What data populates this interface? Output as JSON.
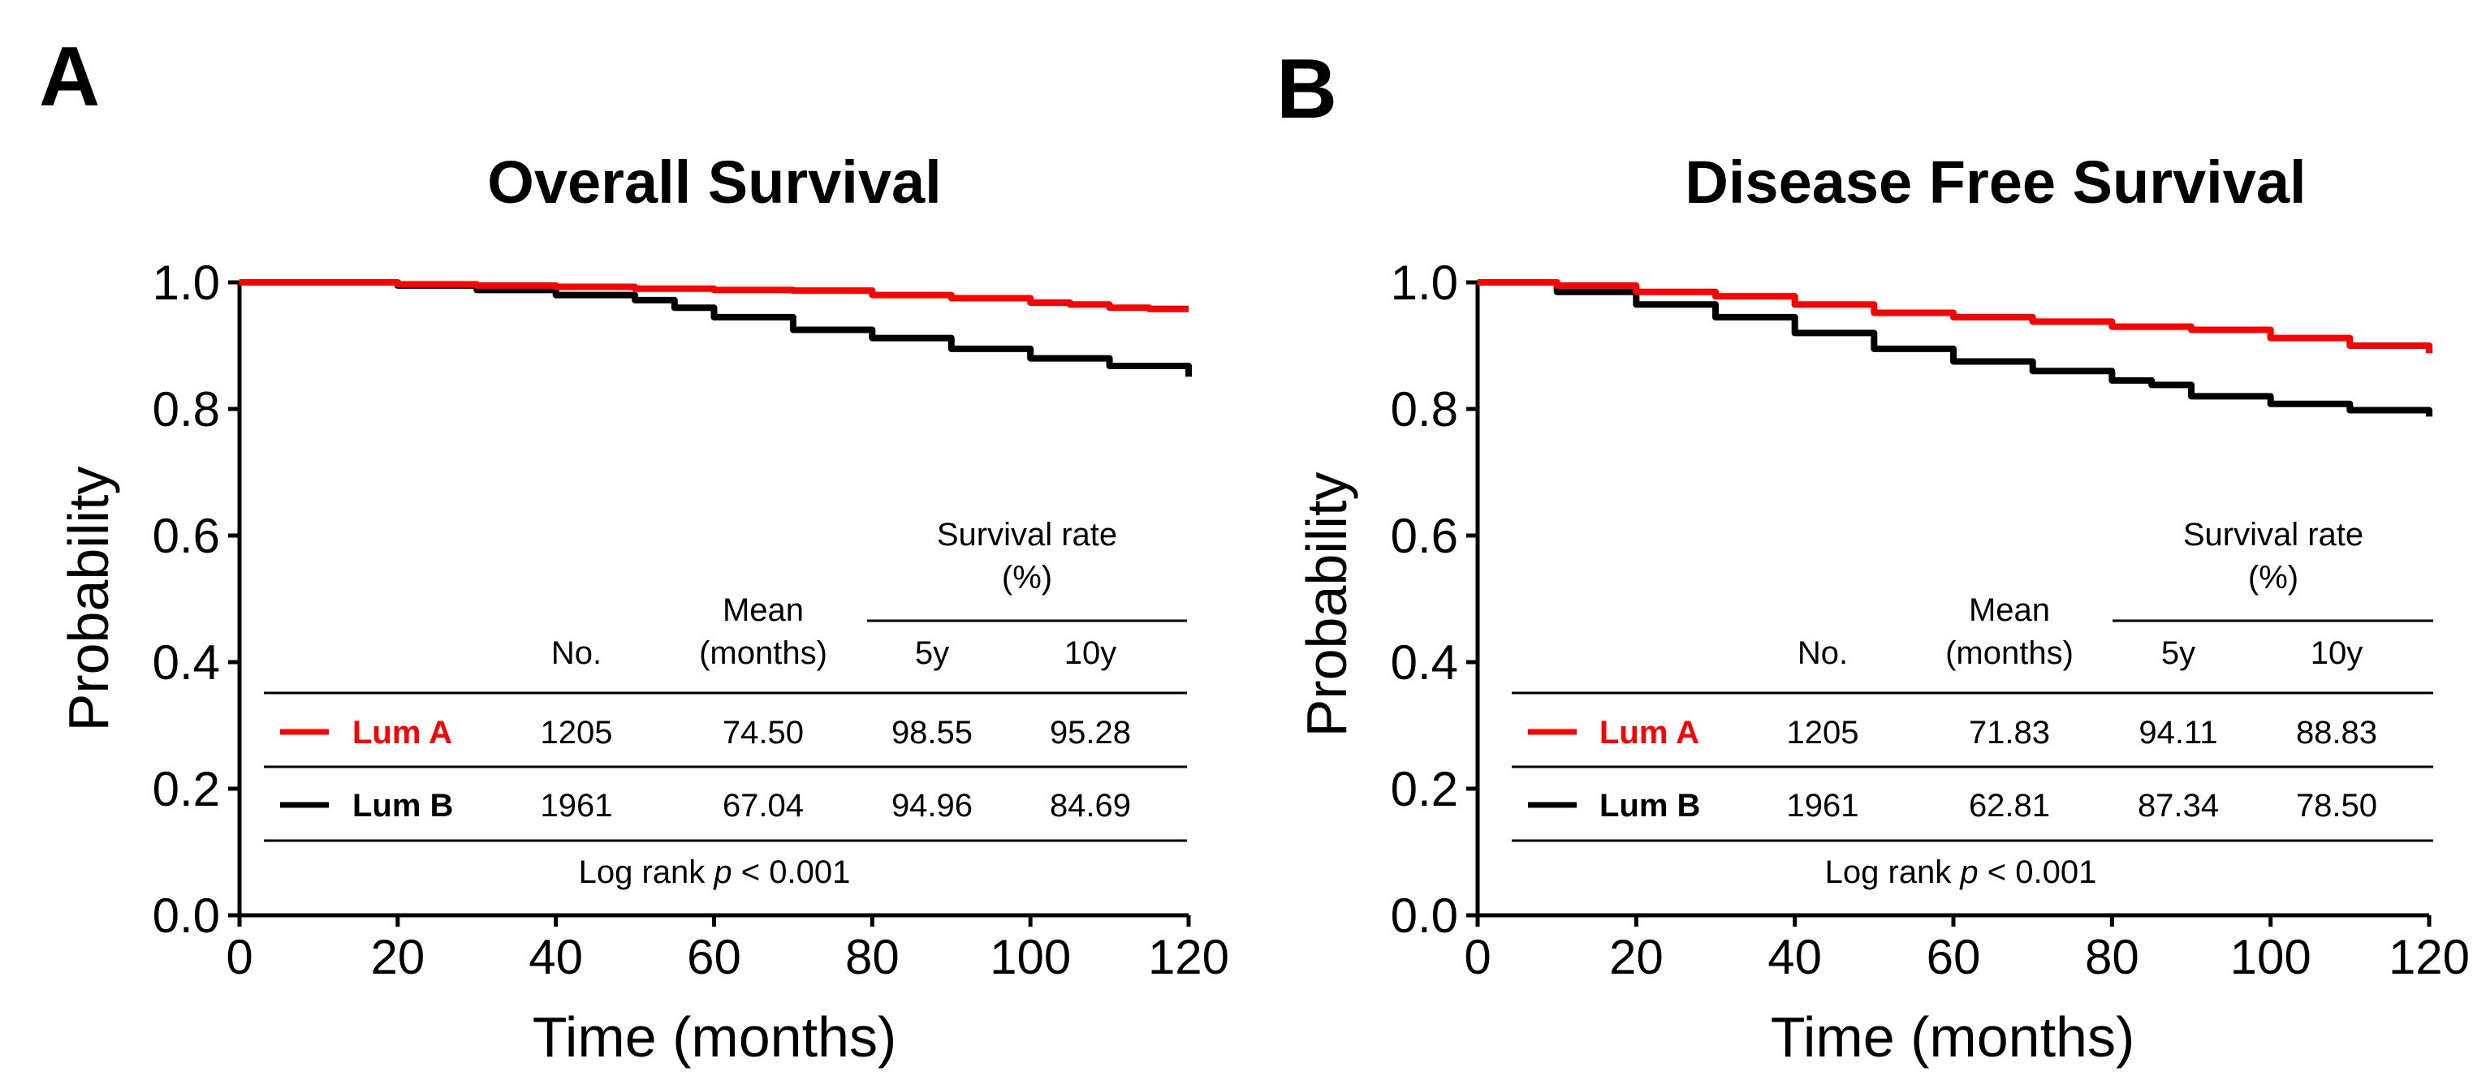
{
  "panels": [
    {
      "letter": "A",
      "title": "Overall Survival",
      "xlabel": "Time (months)",
      "ylabel": "Probability",
      "table": {
        "header_no": "No.",
        "header_mean_1": "Mean",
        "header_mean_2": "(months)",
        "header_rate_1": "Survival rate",
        "header_rate_2": "(%)",
        "header_5y": "5y",
        "header_10y": "10y",
        "rows": [
          {
            "name": "Lum A",
            "no": "1205",
            "mean": "74.50",
            "y5": "98.55",
            "y10": "95.28"
          },
          {
            "name": "Lum B",
            "no": "1961",
            "mean": "67.04",
            "y5": "94.96",
            "y10": "84.69"
          }
        ],
        "logrank_pre": "Log rank ",
        "logrank_p": "p",
        "logrank_post": " < 0.001"
      }
    },
    {
      "letter": "B",
      "title": "Disease Free Survival",
      "xlabel": "Time (months)",
      "ylabel": "Probability",
      "table": {
        "header_no": "No.",
        "header_mean_1": "Mean",
        "header_mean_2": "(months)",
        "header_rate_1": "Survival rate",
        "header_rate_2": "(%)",
        "header_5y": "5y",
        "header_10y": "10y",
        "rows": [
          {
            "name": "Lum A",
            "no": "1205",
            "mean": "71.83",
            "y5": "94.11",
            "y10": "88.83"
          },
          {
            "name": "Lum B",
            "no": "1961",
            "mean": "62.81",
            "y5": "87.34",
            "y10": "78.50"
          }
        ],
        "logrank_pre": "Log rank ",
        "logrank_p": "p",
        "logrank_post": " < 0.001"
      }
    }
  ],
  "colors": {
    "lum_a": "#ff0000",
    "lum_b": "#000000"
  },
  "chart_data": [
    {
      "type": "line",
      "title": "Overall Survival",
      "xlabel": "Time (months)",
      "ylabel": "Probability",
      "xlim": [
        0,
        120
      ],
      "ylim": [
        0.0,
        1.0
      ],
      "xticks": [
        "0",
        "20",
        "40",
        "60",
        "80",
        "100",
        "120"
      ],
      "yticks": [
        "0.0",
        "0.2",
        "0.4",
        "0.6",
        "0.8",
        "1.0"
      ],
      "series": [
        {
          "name": "Lum A",
          "x": [
            0,
            10,
            20,
            30,
            40,
            50,
            60,
            70,
            80,
            90,
            100,
            105,
            110,
            115,
            120
          ],
          "y": [
            1.0,
            1.0,
            0.997,
            0.995,
            0.993,
            0.99,
            0.988,
            0.987,
            0.98,
            0.975,
            0.968,
            0.965,
            0.96,
            0.958,
            0.958
          ]
        },
        {
          "name": "Lum B",
          "x": [
            0,
            10,
            20,
            30,
            40,
            50,
            55,
            60,
            70,
            80,
            90,
            100,
            110,
            120
          ],
          "y": [
            1.0,
            1.0,
            0.995,
            0.988,
            0.98,
            0.972,
            0.96,
            0.945,
            0.925,
            0.912,
            0.895,
            0.88,
            0.868,
            0.851
          ]
        }
      ]
    },
    {
      "type": "line",
      "title": "Disease Free Survival",
      "xlabel": "Time (months)",
      "ylabel": "Probability",
      "xlim": [
        0,
        120
      ],
      "ylim": [
        0.0,
        1.0
      ],
      "xticks": [
        "0",
        "20",
        "40",
        "60",
        "80",
        "100",
        "120"
      ],
      "yticks": [
        "0.0",
        "0.2",
        "0.4",
        "0.6",
        "0.8",
        "1.0"
      ],
      "series": [
        {
          "name": "Lum A",
          "x": [
            0,
            10,
            20,
            30,
            40,
            50,
            60,
            70,
            80,
            90,
            100,
            110,
            120
          ],
          "y": [
            1.0,
            0.995,
            0.985,
            0.978,
            0.965,
            0.952,
            0.945,
            0.938,
            0.93,
            0.925,
            0.912,
            0.9,
            0.888
          ]
        },
        {
          "name": "Lum B",
          "x": [
            0,
            10,
            20,
            30,
            40,
            50,
            60,
            70,
            80,
            85,
            90,
            100,
            110,
            120
          ],
          "y": [
            1.0,
            0.985,
            0.965,
            0.945,
            0.92,
            0.895,
            0.875,
            0.86,
            0.845,
            0.838,
            0.82,
            0.808,
            0.798,
            0.788
          ]
        }
      ]
    }
  ]
}
